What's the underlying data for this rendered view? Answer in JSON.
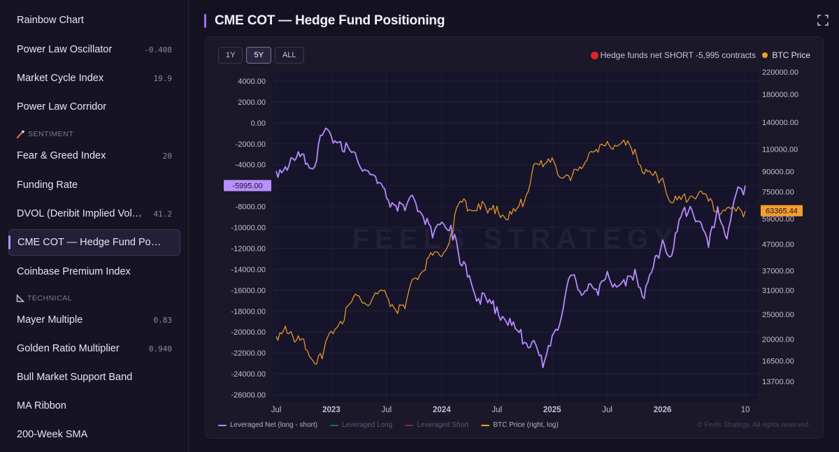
{
  "sidebar": {
    "items": [
      {
        "label": "Rainbow Chart",
        "value": ""
      },
      {
        "label": "Power Law Oscillator",
        "value": "-0.408"
      },
      {
        "label": "Market Cycle Index",
        "value": "19.9"
      },
      {
        "label": "Power Law Corridor",
        "value": ""
      },
      {
        "label": "Fear & Greed Index",
        "value": "20"
      },
      {
        "label": "Funding Rate",
        "value": ""
      },
      {
        "label": "DVOL (Deribit Implied Volatility)",
        "value": "41.2"
      },
      {
        "label": "CME COT — Hedge Fund Positioning",
        "value": ""
      },
      {
        "label": "Coinbase Premium Index",
        "value": ""
      },
      {
        "label": "Mayer Multiple",
        "value": "0.83"
      },
      {
        "label": "Golden Ratio Multiplier",
        "value": "0.940"
      },
      {
        "label": "Bull Market Support Band",
        "value": ""
      },
      {
        "label": "MA Ribbon",
        "value": ""
      },
      {
        "label": "200-Week SMA",
        "value": ""
      }
    ],
    "sections": {
      "sentiment": "SENTIMENT",
      "technical": "TECHNICAL"
    }
  },
  "header": {
    "title": "CME COT — Hedge Fund Positioning"
  },
  "range": {
    "buttons": [
      "1Y",
      "5Y",
      "ALL"
    ],
    "selected": "5Y"
  },
  "status": {
    "text": "Hedge funds net SHORT -5,995 contracts",
    "dot_color": "#e02424"
  },
  "btc_legend": {
    "label": "BTC Price",
    "color": "#f59e2b"
  },
  "watermark": "FEELS STRATEGY",
  "legend": [
    {
      "label": "Leveraged Net (long - short)",
      "color": "#b88cff",
      "active": true
    },
    {
      "label": "Leveraged Long",
      "color": "#1f8a70",
      "active": false
    },
    {
      "label": "Leveraged Short",
      "color": "#b0333d",
      "active": false
    },
    {
      "label": "BTC Price (right, log)",
      "color": "#f59e2b",
      "active": true
    }
  ],
  "copyright": "© Feels Strategy. All rights reserved.",
  "chart_data": {
    "type": "line",
    "x_ticks": [
      "Jul",
      "2023",
      "Jul",
      "2024",
      "Jul",
      "2025",
      "Jul",
      "2026",
      "10"
    ],
    "y_left_ticks": [
      "4000.00",
      "2000.00",
      "0.00",
      "-2000.00",
      "-4000.00",
      "-6000.00",
      "-8000.00",
      "-10000.00",
      "-12000.00",
      "-14000.00",
      "-16000.00",
      "-18000.00",
      "-20000.00",
      "-22000.00",
      "-24000.00",
      "-26000.00"
    ],
    "y_left_range": [
      -26000,
      4000
    ],
    "y_right_ticks": [
      "220000.00",
      "180000.00",
      "140000.00",
      "110000.00",
      "90000.00",
      "75000.00",
      "59000.00",
      "47000.00",
      "37000.00",
      "31000.00",
      "25000.00",
      "20000.00",
      "16500.00",
      "13700.00"
    ],
    "y_right_scale": "log",
    "current_net_label": "-5995.00",
    "current_net": -5995,
    "current_btc_label": "63365.44",
    "current_btc": 63365.44,
    "series": [
      {
        "name": "Leveraged Net (long - short)",
        "axis": "left",
        "x": [
          "2022-07",
          "2022-08",
          "2022-09",
          "2022-10",
          "2022-11",
          "2022-12",
          "2023-01",
          "2023-02",
          "2023-03",
          "2023-04",
          "2023-05",
          "2023-06",
          "2023-07",
          "2023-08",
          "2023-09",
          "2023-10",
          "2023-11",
          "2023-12",
          "2024-01",
          "2024-02",
          "2024-03",
          "2024-04",
          "2024-05",
          "2024-06",
          "2024-07",
          "2024-08",
          "2024-09",
          "2024-10",
          "2024-11",
          "2024-12",
          "2025-01",
          "2025-02",
          "2025-03",
          "2025-04",
          "2025-05",
          "2025-06",
          "2025-07",
          "2025-08",
          "2025-09",
          "2025-10",
          "2025-11",
          "2025-12",
          "2026-01",
          "2026-02",
          "2026-03",
          "2026-04",
          "2026-05",
          "2026-06",
          "2026-07",
          "2026-08",
          "2026-09",
          "2026-10"
        ],
        "values": [
          -4600,
          -4200,
          -3600,
          -3000,
          -4400,
          -1200,
          -1300,
          -1800,
          -2600,
          -4000,
          -4600,
          -5800,
          -7200,
          -7900,
          -8400,
          -7300,
          -9000,
          -11000,
          -9500,
          -9800,
          -13500,
          -14600,
          -16800,
          -17200,
          -17600,
          -19000,
          -19700,
          -21000,
          -20800,
          -23400,
          -20400,
          -18600,
          -14600,
          -16100,
          -15400,
          -16500,
          -14200,
          -15700,
          -15600,
          -14000,
          -16800,
          -13800,
          -11200,
          -12700,
          -9000,
          -8000,
          -9400,
          -11900,
          -8000,
          -11100,
          -6800,
          -5995
        ]
      },
      {
        "name": "BTC Price (right, log)",
        "axis": "right",
        "x": [
          "2022-07",
          "2022-08",
          "2022-09",
          "2022-10",
          "2022-11",
          "2022-12",
          "2023-01",
          "2023-02",
          "2023-03",
          "2023-04",
          "2023-05",
          "2023-06",
          "2023-07",
          "2023-08",
          "2023-09",
          "2023-10",
          "2023-11",
          "2023-12",
          "2024-01",
          "2024-02",
          "2024-03",
          "2024-04",
          "2024-05",
          "2024-06",
          "2024-07",
          "2024-08",
          "2024-09",
          "2024-10",
          "2024-11",
          "2024-12",
          "2025-01",
          "2025-02",
          "2025-03",
          "2025-04",
          "2025-05",
          "2025-06",
          "2025-07",
          "2025-08",
          "2025-09",
          "2025-10",
          "2025-11",
          "2025-12",
          "2026-01",
          "2026-02",
          "2026-03",
          "2026-04",
          "2026-05",
          "2026-06",
          "2026-07",
          "2026-08",
          "2026-09",
          "2026-10"
        ],
        "values": [
          20500,
          22500,
          19500,
          20000,
          16500,
          16800,
          21500,
          23500,
          27500,
          29500,
          27000,
          30000,
          29500,
          26000,
          26300,
          34500,
          37000,
          42500,
          42000,
          51500,
          69000,
          64000,
          67500,
          62000,
          66000,
          58500,
          63000,
          69000,
          96000,
          94000,
          102000,
          85000,
          83000,
          94000,
          106000,
          107000,
          118000,
          113000,
          114000,
          110000,
          88000,
          87000,
          85000,
          68000,
          70000,
          72000,
          75000,
          69000,
          63000,
          65000,
          63000,
          63365
        ]
      }
    ],
    "legend_position": "bottom-left",
    "grid": true
  }
}
